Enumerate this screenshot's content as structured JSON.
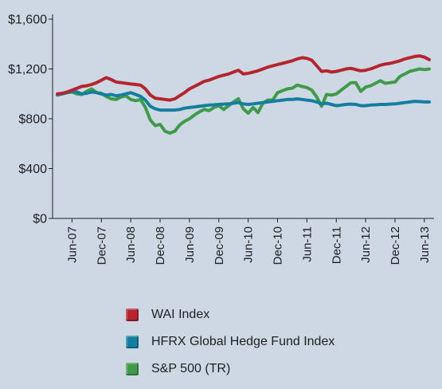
{
  "chart_data": {
    "type": "line",
    "title": "",
    "xlabel": "",
    "ylabel": "",
    "ylim": [
      0,
      1600
    ],
    "yticks": [
      0,
      400,
      800,
      1200,
      1600
    ],
    "ytick_labels": [
      "$0",
      "$400",
      "$800",
      "$1,200",
      "$1,600"
    ],
    "x_labels": [
      "Jun-07",
      "Dec-07",
      "Jun-08",
      "Dec-08",
      "Jun-09",
      "Dec-09",
      "Jun-10",
      "Dec-10",
      "Jun-11",
      "Dec-11",
      "Jun-12",
      "Dec-12",
      "Jun-13"
    ],
    "x_start": "2007-03",
    "x_end": "2013-07",
    "grid": false,
    "legend_position": "bottom",
    "series": [
      {
        "name": "WAI Index",
        "color": "#b5252f",
        "points": [
          [
            "2007-03",
            1000
          ],
          [
            "2007-04",
            1005
          ],
          [
            "2007-05",
            1015
          ],
          [
            "2007-06",
            1030
          ],
          [
            "2007-07",
            1045
          ],
          [
            "2007-08",
            1060
          ],
          [
            "2007-09",
            1065
          ],
          [
            "2007-10",
            1075
          ],
          [
            "2007-11",
            1090
          ],
          [
            "2007-12",
            1110
          ],
          [
            "2008-01",
            1130
          ],
          [
            "2008-02",
            1115
          ],
          [
            "2008-03",
            1095
          ],
          [
            "2008-04",
            1090
          ],
          [
            "2008-05",
            1085
          ],
          [
            "2008-06",
            1080
          ],
          [
            "2008-07",
            1075
          ],
          [
            "2008-08",
            1070
          ],
          [
            "2008-09",
            1040
          ],
          [
            "2008-10",
            990
          ],
          [
            "2008-11",
            965
          ],
          [
            "2008-12",
            960
          ],
          [
            "2009-01",
            955
          ],
          [
            "2009-02",
            950
          ],
          [
            "2009-03",
            960
          ],
          [
            "2009-04",
            985
          ],
          [
            "2009-05",
            1010
          ],
          [
            "2009-06",
            1040
          ],
          [
            "2009-07",
            1060
          ],
          [
            "2009-08",
            1080
          ],
          [
            "2009-09",
            1100
          ],
          [
            "2009-10",
            1110
          ],
          [
            "2009-11",
            1125
          ],
          [
            "2009-12",
            1140
          ],
          [
            "2010-01",
            1150
          ],
          [
            "2010-02",
            1160
          ],
          [
            "2010-03",
            1175
          ],
          [
            "2010-04",
            1190
          ],
          [
            "2010-05",
            1160
          ],
          [
            "2010-06",
            1165
          ],
          [
            "2010-07",
            1175
          ],
          [
            "2010-08",
            1185
          ],
          [
            "2010-09",
            1200
          ],
          [
            "2010-10",
            1215
          ],
          [
            "2010-11",
            1225
          ],
          [
            "2010-12",
            1235
          ],
          [
            "2011-01",
            1245
          ],
          [
            "2011-02",
            1255
          ],
          [
            "2011-03",
            1265
          ],
          [
            "2011-04",
            1280
          ],
          [
            "2011-05",
            1290
          ],
          [
            "2011-06",
            1285
          ],
          [
            "2011-07",
            1270
          ],
          [
            "2011-08",
            1225
          ],
          [
            "2011-09",
            1180
          ],
          [
            "2011-10",
            1185
          ],
          [
            "2011-11",
            1175
          ],
          [
            "2011-12",
            1180
          ],
          [
            "2012-01",
            1190
          ],
          [
            "2012-02",
            1200
          ],
          [
            "2012-03",
            1205
          ],
          [
            "2012-04",
            1195
          ],
          [
            "2012-05",
            1185
          ],
          [
            "2012-06",
            1190
          ],
          [
            "2012-07",
            1200
          ],
          [
            "2012-08",
            1215
          ],
          [
            "2012-09",
            1230
          ],
          [
            "2012-10",
            1240
          ],
          [
            "2012-11",
            1245
          ],
          [
            "2012-12",
            1255
          ],
          [
            "2013-01",
            1265
          ],
          [
            "2013-02",
            1280
          ],
          [
            "2013-03",
            1290
          ],
          [
            "2013-04",
            1300
          ],
          [
            "2013-05",
            1305
          ],
          [
            "2013-06",
            1295
          ],
          [
            "2013-07",
            1275
          ]
        ]
      },
      {
        "name": "HFRX Global Hedge Fund Index",
        "color": "#147e9e",
        "points": [
          [
            "2007-03",
            995
          ],
          [
            "2007-04",
            1000
          ],
          [
            "2007-05",
            1010
          ],
          [
            "2007-06",
            1020
          ],
          [
            "2007-07",
            1015
          ],
          [
            "2007-08",
            1000
          ],
          [
            "2007-09",
            1005
          ],
          [
            "2007-10",
            1015
          ],
          [
            "2007-11",
            1010
          ],
          [
            "2007-12",
            1000
          ],
          [
            "2008-01",
            990
          ],
          [
            "2008-02",
            995
          ],
          [
            "2008-03",
            985
          ],
          [
            "2008-04",
            990
          ],
          [
            "2008-05",
            1000
          ],
          [
            "2008-06",
            1010
          ],
          [
            "2008-07",
            995
          ],
          [
            "2008-08",
            980
          ],
          [
            "2008-09",
            950
          ],
          [
            "2008-10",
            900
          ],
          [
            "2008-11",
            880
          ],
          [
            "2008-12",
            870
          ],
          [
            "2009-01",
            870
          ],
          [
            "2009-02",
            870
          ],
          [
            "2009-03",
            870
          ],
          [
            "2009-04",
            875
          ],
          [
            "2009-05",
            885
          ],
          [
            "2009-06",
            890
          ],
          [
            "2009-07",
            895
          ],
          [
            "2009-08",
            900
          ],
          [
            "2009-09",
            905
          ],
          [
            "2009-10",
            910
          ],
          [
            "2009-11",
            912
          ],
          [
            "2009-12",
            915
          ],
          [
            "2010-01",
            918
          ],
          [
            "2010-02",
            920
          ],
          [
            "2010-03",
            925
          ],
          [
            "2010-04",
            930
          ],
          [
            "2010-05",
            920
          ],
          [
            "2010-06",
            915
          ],
          [
            "2010-07",
            920
          ],
          [
            "2010-08",
            925
          ],
          [
            "2010-09",
            930
          ],
          [
            "2010-10",
            935
          ],
          [
            "2010-11",
            940
          ],
          [
            "2010-12",
            945
          ],
          [
            "2011-01",
            950
          ],
          [
            "2011-02",
            955
          ],
          [
            "2011-03",
            955
          ],
          [
            "2011-04",
            960
          ],
          [
            "2011-05",
            955
          ],
          [
            "2011-06",
            950
          ],
          [
            "2011-07",
            945
          ],
          [
            "2011-08",
            935
          ],
          [
            "2011-09",
            920
          ],
          [
            "2011-10",
            925
          ],
          [
            "2011-11",
            915
          ],
          [
            "2011-12",
            905
          ],
          [
            "2012-01",
            910
          ],
          [
            "2012-02",
            915
          ],
          [
            "2012-03",
            918
          ],
          [
            "2012-04",
            915
          ],
          [
            "2012-05",
            905
          ],
          [
            "2012-06",
            905
          ],
          [
            "2012-07",
            910
          ],
          [
            "2012-08",
            912
          ],
          [
            "2012-09",
            915
          ],
          [
            "2012-10",
            915
          ],
          [
            "2012-11",
            918
          ],
          [
            "2012-12",
            920
          ],
          [
            "2013-01",
            925
          ],
          [
            "2013-02",
            930
          ],
          [
            "2013-03",
            935
          ],
          [
            "2013-04",
            940
          ],
          [
            "2013-05",
            938
          ],
          [
            "2013-06",
            935
          ],
          [
            "2013-07",
            935
          ]
        ]
      },
      {
        "name": "S&P 500 (TR)",
        "color": "#3f9b47",
        "points": [
          [
            "2007-03",
            990
          ],
          [
            "2007-04",
            1000
          ],
          [
            "2007-05",
            1010
          ],
          [
            "2007-06",
            1015
          ],
          [
            "2007-07",
            1000
          ],
          [
            "2007-08",
            995
          ],
          [
            "2007-09",
            1020
          ],
          [
            "2007-10",
            1040
          ],
          [
            "2007-11",
            1010
          ],
          [
            "2007-12",
            1005
          ],
          [
            "2008-01",
            980
          ],
          [
            "2008-02",
            960
          ],
          [
            "2008-03",
            955
          ],
          [
            "2008-04",
            975
          ],
          [
            "2008-05",
            985
          ],
          [
            "2008-06",
            955
          ],
          [
            "2008-07",
            945
          ],
          [
            "2008-08",
            955
          ],
          [
            "2008-09",
            890
          ],
          [
            "2008-10",
            790
          ],
          [
            "2008-11",
            745
          ],
          [
            "2008-12",
            755
          ],
          [
            "2009-01",
            700
          ],
          [
            "2009-02",
            685
          ],
          [
            "2009-03",
            700
          ],
          [
            "2009-04",
            750
          ],
          [
            "2009-05",
            780
          ],
          [
            "2009-06",
            800
          ],
          [
            "2009-07",
            830
          ],
          [
            "2009-08",
            855
          ],
          [
            "2009-09",
            875
          ],
          [
            "2009-10",
            865
          ],
          [
            "2009-11",
            890
          ],
          [
            "2009-12",
            905
          ],
          [
            "2010-01",
            875
          ],
          [
            "2010-02",
            905
          ],
          [
            "2010-03",
            935
          ],
          [
            "2010-04",
            960
          ],
          [
            "2010-05",
            880
          ],
          [
            "2010-06",
            845
          ],
          [
            "2010-07",
            890
          ],
          [
            "2010-08",
            850
          ],
          [
            "2010-09",
            925
          ],
          [
            "2010-10",
            950
          ],
          [
            "2010-11",
            950
          ],
          [
            "2010-12",
            1010
          ],
          [
            "2011-01",
            1025
          ],
          [
            "2011-02",
            1040
          ],
          [
            "2011-03",
            1045
          ],
          [
            "2011-04",
            1070
          ],
          [
            "2011-05",
            1060
          ],
          [
            "2011-06",
            1050
          ],
          [
            "2011-07",
            1030
          ],
          [
            "2011-08",
            975
          ],
          [
            "2011-09",
            900
          ],
          [
            "2011-10",
            995
          ],
          [
            "2011-11",
            990
          ],
          [
            "2011-12",
            1000
          ],
          [
            "2012-01",
            1030
          ],
          [
            "2012-02",
            1060
          ],
          [
            "2012-03",
            1090
          ],
          [
            "2012-04",
            1090
          ],
          [
            "2012-05",
            1020
          ],
          [
            "2012-06",
            1055
          ],
          [
            "2012-07",
            1065
          ],
          [
            "2012-08",
            1085
          ],
          [
            "2012-09",
            1105
          ],
          [
            "2012-10",
            1085
          ],
          [
            "2012-11",
            1090
          ],
          [
            "2012-12",
            1095
          ],
          [
            "2013-01",
            1140
          ],
          [
            "2013-02",
            1160
          ],
          [
            "2013-03",
            1180
          ],
          [
            "2013-04",
            1190
          ],
          [
            "2013-05",
            1200
          ],
          [
            "2013-06",
            1195
          ],
          [
            "2013-07",
            1200
          ]
        ]
      }
    ]
  }
}
